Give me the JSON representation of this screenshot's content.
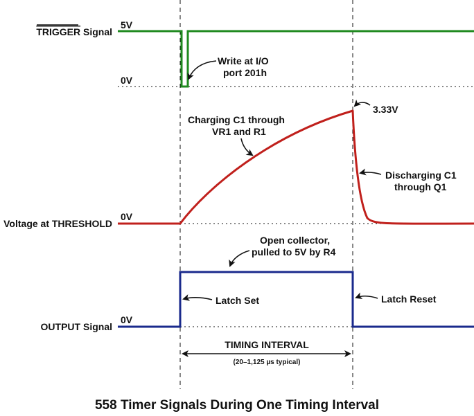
{
  "colors": {
    "trigger": "#1f8a1f",
    "threshold": "#c0201c",
    "output": "#1a2a8c",
    "ink": "#111111"
  },
  "signals": {
    "trigger": {
      "name_over": "TRIGGER",
      "name_rest": " Signal",
      "high": "5V",
      "low": "0V"
    },
    "threshold": {
      "name": "Voltage at THRESHOLD",
      "low": "0V"
    },
    "output": {
      "name": "OUTPUT Signal",
      "low": "0V"
    }
  },
  "annotations": {
    "write_line1": "Write at I/O",
    "write_line2": "port 201h",
    "charging_line1": "Charging C1 through",
    "charging_line2": "VR1 and R1",
    "peak": "3.33V",
    "discharging_line1": "Discharging C1",
    "discharging_line2": "through Q1",
    "open_line1": "Open collector,",
    "open_line2": "pulled to 5V by R4",
    "latch_set": "Latch Set",
    "latch_reset": "Latch Reset"
  },
  "timing": {
    "label": "TIMING INTERVAL",
    "range": "(20–1,125 µs typical)"
  },
  "title": "558 Timer Signals During One Timing Interval"
}
